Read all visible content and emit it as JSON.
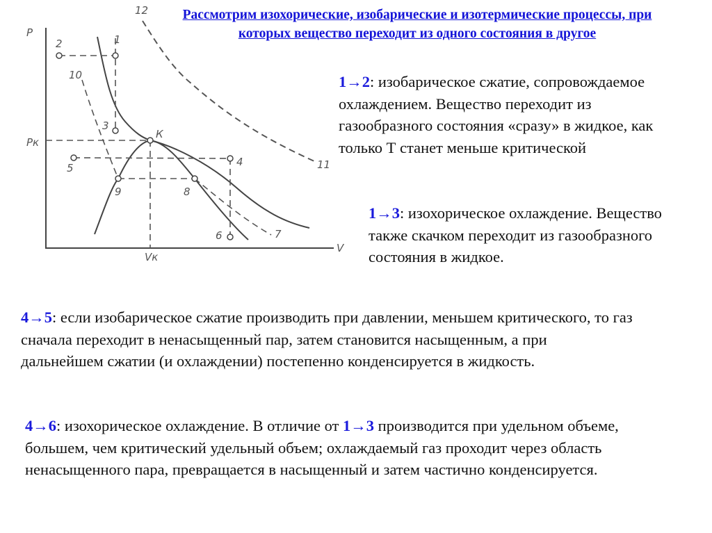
{
  "title": "Рассмотрим изохорические, изобарические и изотермические процессы, при которых вещество переходит из одного состояния в другое",
  "diagram": {
    "axis_labels": {
      "y": "P",
      "x": "V",
      "pk": "Pк",
      "vk": "Vк",
      "critical": "К"
    },
    "point_labels": [
      "1",
      "2",
      "3",
      "4",
      "5",
      "6",
      "7",
      "8",
      "9",
      "10",
      "11",
      "12"
    ]
  },
  "p12": {
    "label": "1→2",
    "text": ": изобарическое сжатие, сопровождаемое охлаждением. Вещество переходит из газообразного состояния «сразу» в жидкое, как только Т станет меньше критической"
  },
  "p13": {
    "label": "1→3",
    "text": ": изохорическое охлаждение. Вещество также скачком переходит из газообразного состояния  в жидкое."
  },
  "p45": {
    "label": "4→5",
    "text": ": если изобарическое сжатие производить при давлении, меньшем критического, то газ сначала переходит в ненасыщенный пар, затем становится насыщенным, а при дальнейшем сжатии (и охлаждении) постепенно конденсируется в жидкость."
  },
  "p46": {
    "label": "4→6",
    "text1": ": изохорическое охлаждение. В отличие от ",
    "label2": "1→3",
    "text2": " производится при удельном объеме, большем, чем критический удельный объем; охлаждаемый газ проходит через область ненасыщенного пара, превращается в насыщенный и затем частично конденсируется."
  },
  "colors": {
    "accent": "#1a1adc"
  }
}
